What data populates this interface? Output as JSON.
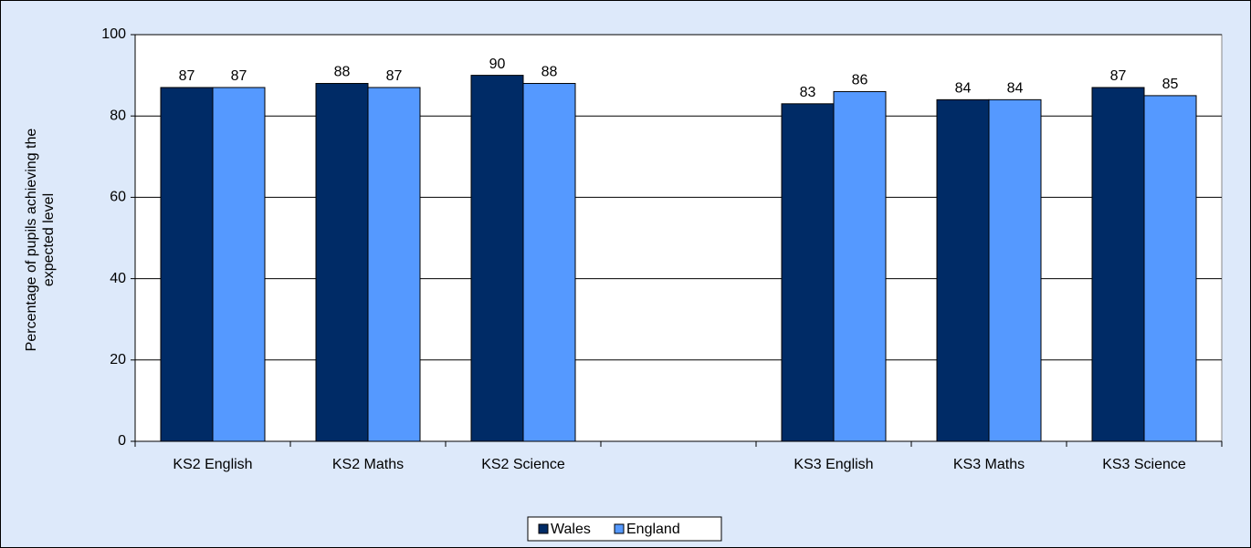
{
  "chart_data": {
    "type": "bar",
    "y_label": "Percentage of pupils achieving the expected level",
    "categories": [
      "KS2 English",
      "KS2 Maths",
      "KS2 Science",
      null,
      "KS3 English",
      "KS3 Maths",
      "KS3 Science"
    ],
    "series": [
      {
        "name": "Wales",
        "color": "#002b66",
        "values": [
          87,
          88,
          90,
          null,
          83,
          84,
          87
        ]
      },
      {
        "name": "England",
        "color": "#5599ff",
        "values": [
          87,
          87,
          88,
          null,
          86,
          84,
          85
        ]
      }
    ],
    "ylim": [
      0,
      100
    ],
    "yticks": [
      0,
      20,
      40,
      60,
      80,
      100
    ],
    "grid": true,
    "legend": "bottom"
  }
}
